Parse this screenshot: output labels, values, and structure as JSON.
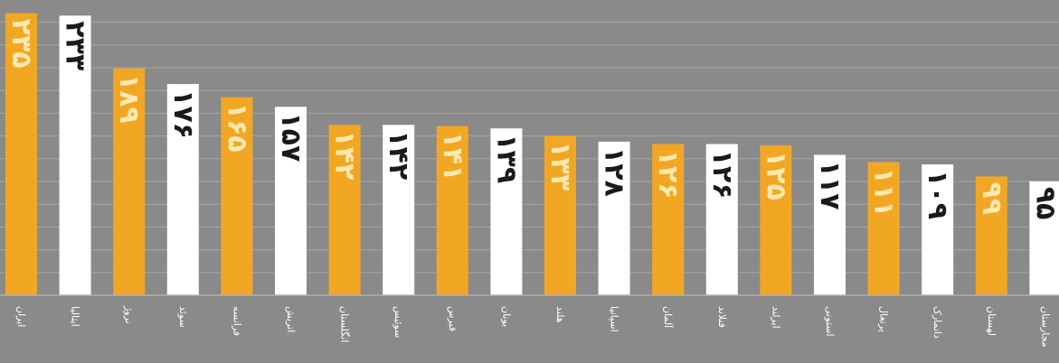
{
  "chart_data": {
    "type": "bar",
    "categories": [
      "ایران",
      "ایتالیا",
      "نروژ",
      "سوئد",
      "فرانسه",
      "اتریش",
      "انگلستان",
      "سوئیس",
      "قبرس",
      "یونان",
      "هلند",
      "اسپانیا",
      "آلمان",
      "فنلاند",
      "ایرلند",
      "استونی",
      "پرتغال",
      "دانمارک",
      "لهستان",
      "مجارستان"
    ],
    "values": [
      235,
      233,
      189,
      176,
      165,
      157,
      142,
      142,
      141,
      139,
      133,
      128,
      126,
      126,
      125,
      117,
      111,
      109,
      99,
      95
    ],
    "value_labels": [
      "۲۳۵",
      "۲۳۳",
      "۱۸۹",
      "۱۷۶",
      "۱۶۵",
      "۱۵۷",
      "۱۴۲",
      "۱۴۲",
      "۱۴۱",
      "۱۳۹",
      "۱۳۳",
      "۱۲۸",
      "۱۲۶",
      "۱۲۶",
      "۱۲۵",
      "۱۱۷",
      "۱۱۱",
      "۱۰۹",
      "۹۹",
      "۹۵"
    ],
    "bar_colors": [
      "#f2a724",
      "#ffffff"
    ],
    "label_colors": [
      "#fde9b0",
      "#1a1a1a"
    ],
    "ylim": [
      0,
      240
    ],
    "grid": true,
    "title": "",
    "xlabel": "",
    "ylabel": ""
  },
  "colors": {
    "background": "#8a8a8a",
    "grid": "#a5a5a5",
    "axis": "#b0b0b0",
    "category_text": "#ffffff"
  }
}
